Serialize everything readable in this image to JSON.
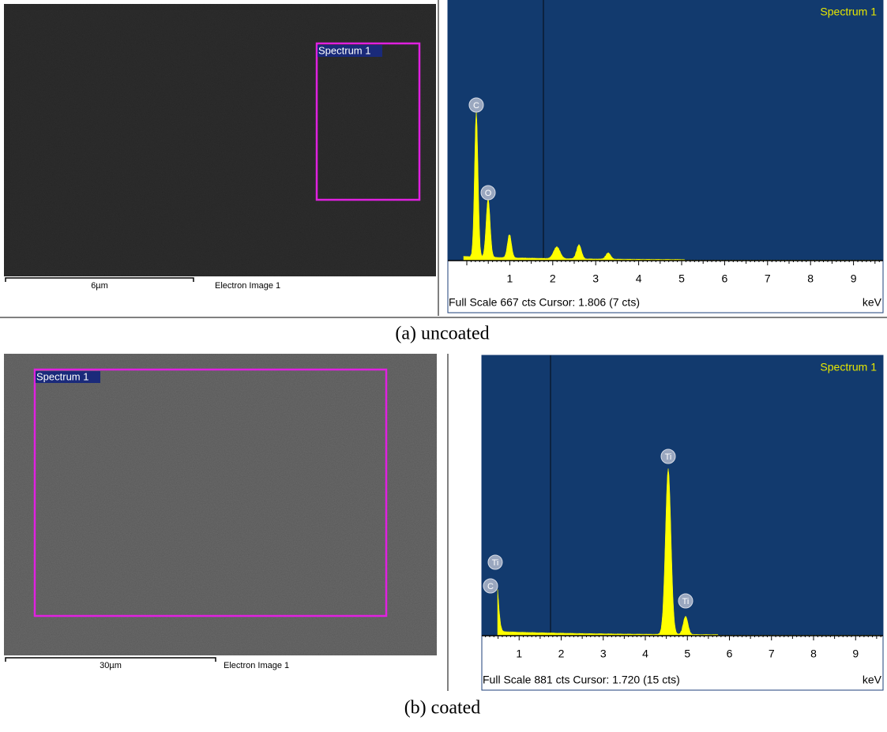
{
  "panels": [
    {
      "image": {
        "region_label": "Spectrum 1",
        "scale_bar": "6µm",
        "image_label": "Electron Image 1"
      },
      "spectrum": {
        "title": "Spectrum 1",
        "peak_labels": [
          "C",
          "O"
        ],
        "x_tick_labels": [
          "1",
          "2",
          "3",
          "4",
          "5",
          "6",
          "7",
          "8",
          "9"
        ],
        "footer": "Full Scale 667 cts Cursor: 1.806 (7 cts)",
        "unit": "keV"
      },
      "caption": "(a) uncoated"
    },
    {
      "image": {
        "region_label": "Spectrum 1",
        "scale_bar": "30µm",
        "image_label": "Electron Image 1"
      },
      "spectrum": {
        "title": "Spectrum 1",
        "peak_labels": [
          "Ti",
          "C",
          "Ti",
          "Ti"
        ],
        "x_tick_labels": [
          "1",
          "2",
          "3",
          "4",
          "5",
          "6",
          "7",
          "8",
          "9"
        ],
        "footer": "Full Scale 881 cts Cursor: 1.720 (15 cts)",
        "unit": "keV"
      },
      "caption": "(b) coated"
    }
  ]
}
